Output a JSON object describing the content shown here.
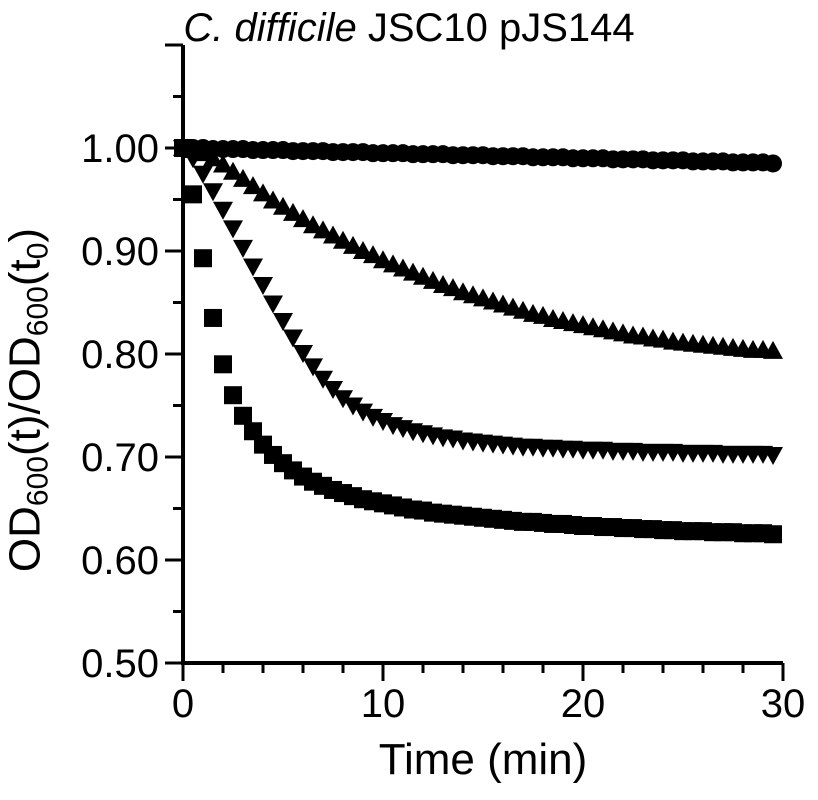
{
  "chart_data": {
    "type": "scatter",
    "title": {
      "italic": "C. difficile",
      "normal": " JSC10 pJS144"
    },
    "xlabel": "Time (min)",
    "ylabel": {
      "a": "OD",
      "b": "600",
      "c": "(t)/OD",
      "d": "600",
      "e": "(t",
      "f": "0",
      "g": ")"
    },
    "xlim": [
      0,
      30
    ],
    "ylim": [
      0.5,
      1.1
    ],
    "x_ticks": [
      "0",
      "10",
      "20",
      "30"
    ],
    "y_ticks": [
      "0.50",
      "0.60",
      "0.70",
      "0.80",
      "0.90",
      "1.00"
    ],
    "grid": false,
    "series": [
      {
        "marker": "circle",
        "x": [
          0,
          0.5,
          1,
          1.5,
          2,
          2.5,
          3,
          3.5,
          4,
          4.5,
          5,
          5.5,
          6,
          6.5,
          7,
          7.5,
          8,
          8.5,
          9,
          9.5,
          10,
          10.5,
          11,
          11.5,
          12,
          12.5,
          13,
          13.5,
          14,
          14.5,
          15,
          15.5,
          16,
          16.5,
          17,
          17.5,
          18,
          18.5,
          19,
          19.5,
          20,
          20.5,
          21,
          21.5,
          22,
          22.5,
          23,
          23.5,
          24,
          24.5,
          25,
          25.5,
          26,
          26.5,
          27,
          27.5,
          28,
          28.5,
          29,
          29.5
        ],
        "y": [
          1.0,
          1.0,
          1.0,
          0.999,
          0.999,
          0.999,
          0.999,
          0.998,
          0.998,
          0.998,
          0.998,
          0.997,
          0.997,
          0.997,
          0.997,
          0.996,
          0.996,
          0.996,
          0.996,
          0.995,
          0.995,
          0.995,
          0.995,
          0.994,
          0.994,
          0.994,
          0.994,
          0.993,
          0.993,
          0.993,
          0.993,
          0.992,
          0.992,
          0.992,
          0.992,
          0.991,
          0.991,
          0.991,
          0.991,
          0.99,
          0.99,
          0.99,
          0.99,
          0.989,
          0.989,
          0.989,
          0.989,
          0.988,
          0.988,
          0.988,
          0.988,
          0.987,
          0.987,
          0.987,
          0.987,
          0.986,
          0.986,
          0.986,
          0.986,
          0.985
        ]
      },
      {
        "marker": "triangle-up",
        "x": [
          0,
          0.5,
          1,
          1.5,
          2,
          2.5,
          3,
          3.5,
          4,
          4.5,
          5,
          5.5,
          6,
          6.5,
          7,
          7.5,
          8,
          8.5,
          9,
          9.5,
          10,
          10.5,
          11,
          11.5,
          12,
          12.5,
          13,
          13.5,
          14,
          14.5,
          15,
          15.5,
          16,
          16.5,
          17,
          17.5,
          18,
          18.5,
          19,
          19.5,
          20,
          20.5,
          21,
          21.5,
          22,
          22.5,
          23,
          23.5,
          24,
          24.5,
          25,
          25.5,
          26,
          26.5,
          27,
          27.5,
          28,
          28.5,
          29,
          29.5
        ],
        "y": [
          1.0,
          0.998,
          0.995,
          0.99,
          0.984,
          0.977,
          0.97,
          0.963,
          0.956,
          0.949,
          0.943,
          0.937,
          0.931,
          0.925,
          0.92,
          0.915,
          0.91,
          0.905,
          0.9,
          0.896,
          0.891,
          0.887,
          0.883,
          0.879,
          0.875,
          0.871,
          0.867,
          0.864,
          0.86,
          0.857,
          0.854,
          0.851,
          0.848,
          0.845,
          0.842,
          0.839,
          0.837,
          0.834,
          0.832,
          0.83,
          0.828,
          0.826,
          0.824,
          0.822,
          0.82,
          0.818,
          0.817,
          0.815,
          0.814,
          0.812,
          0.811,
          0.81,
          0.809,
          0.808,
          0.807,
          0.806,
          0.805,
          0.804,
          0.804,
          0.803
        ]
      },
      {
        "marker": "triangle-down",
        "x": [
          0,
          0.5,
          1,
          1.5,
          2,
          2.5,
          3,
          3.5,
          4,
          4.5,
          5,
          5.5,
          6,
          6.5,
          7,
          7.5,
          8,
          8.5,
          9,
          9.5,
          10,
          10.5,
          11,
          11.5,
          12,
          12.5,
          13,
          13.5,
          14,
          14.5,
          15,
          15.5,
          16,
          16.5,
          17,
          17.5,
          18,
          18.5,
          19,
          19.5,
          20,
          20.5,
          21,
          21.5,
          22,
          22.5,
          23,
          23.5,
          24,
          24.5,
          25,
          25.5,
          26,
          26.5,
          27,
          27.5,
          28,
          28.5,
          29,
          29.5
        ],
        "y": [
          1.0,
          0.99,
          0.975,
          0.958,
          0.94,
          0.922,
          0.903,
          0.885,
          0.867,
          0.849,
          0.832,
          0.816,
          0.801,
          0.788,
          0.776,
          0.766,
          0.757,
          0.75,
          0.744,
          0.739,
          0.735,
          0.731,
          0.728,
          0.725,
          0.723,
          0.721,
          0.719,
          0.718,
          0.716,
          0.715,
          0.714,
          0.713,
          0.712,
          0.711,
          0.71,
          0.71,
          0.709,
          0.709,
          0.708,
          0.708,
          0.707,
          0.707,
          0.707,
          0.706,
          0.706,
          0.706,
          0.705,
          0.705,
          0.705,
          0.705,
          0.704,
          0.704,
          0.704,
          0.704,
          0.703,
          0.703,
          0.703,
          0.703,
          0.703,
          0.702
        ]
      },
      {
        "marker": "square",
        "x": [
          0,
          0.5,
          1,
          1.5,
          2,
          2.5,
          3,
          3.5,
          4,
          4.5,
          5,
          5.5,
          6,
          6.5,
          7,
          7.5,
          8,
          8.5,
          9,
          9.5,
          10,
          10.5,
          11,
          11.5,
          12,
          12.5,
          13,
          13.5,
          14,
          14.5,
          15,
          15.5,
          16,
          16.5,
          17,
          17.5,
          18,
          18.5,
          19,
          19.5,
          20,
          20.5,
          21,
          21.5,
          22,
          22.5,
          23,
          23.5,
          24,
          24.5,
          25,
          25.5,
          26,
          26.5,
          27,
          27.5,
          28,
          28.5,
          29,
          29.5
        ],
        "y": [
          1.0,
          0.955,
          0.893,
          0.835,
          0.79,
          0.76,
          0.74,
          0.725,
          0.712,
          0.702,
          0.694,
          0.687,
          0.681,
          0.676,
          0.672,
          0.668,
          0.665,
          0.662,
          0.659,
          0.657,
          0.655,
          0.653,
          0.651,
          0.649,
          0.648,
          0.646,
          0.645,
          0.644,
          0.643,
          0.642,
          0.641,
          0.64,
          0.639,
          0.638,
          0.637,
          0.637,
          0.636,
          0.635,
          0.635,
          0.634,
          0.633,
          0.633,
          0.632,
          0.632,
          0.631,
          0.631,
          0.63,
          0.63,
          0.629,
          0.629,
          0.628,
          0.628,
          0.628,
          0.627,
          0.627,
          0.627,
          0.626,
          0.626,
          0.626,
          0.625
        ]
      }
    ]
  }
}
